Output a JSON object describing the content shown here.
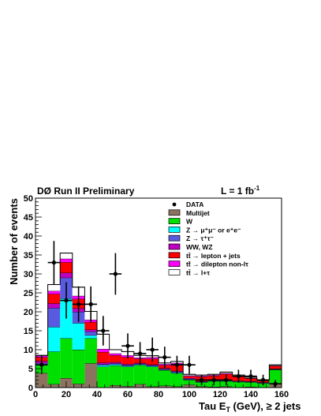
{
  "chart_data": {
    "type": "bar",
    "stacked": true,
    "header_left": "DØ Run II Preliminary",
    "header_right_text": "L = 1 fb",
    "header_right_sup": "-1",
    "xlabel_main": "Tau E",
    "xlabel_sub": "T",
    "xlabel_tail": " (GeV), ≥ 2 jets",
    "ylabel": "Number of events",
    "xlim": [
      0,
      160
    ],
    "ylim": [
      0,
      50
    ],
    "x_ticks": [
      "0",
      "20",
      "40",
      "60",
      "80",
      "100",
      "120",
      "140",
      "160"
    ],
    "y_ticks": [
      "0",
      "5",
      "10",
      "15",
      "20",
      "25",
      "30",
      "35",
      "40",
      "45",
      "50"
    ],
    "bin_edges": [
      0,
      8,
      16,
      24,
      32,
      40,
      48,
      56,
      64,
      72,
      80,
      88,
      96,
      104,
      112,
      120,
      128,
      136,
      144,
      152,
      160
    ],
    "series": [
      {
        "name": "Multijet",
        "color": "#8b7360",
        "values": [
          3.8,
          0.9,
          2.5,
          1.0,
          6.4,
          0,
          0.6,
          0.4,
          0.9,
          0.3,
          0.5,
          0.3,
          0.8,
          0.3,
          0.2,
          0.3,
          0.1,
          0.2,
          0.1,
          1.0
        ]
      },
      {
        "name": "W",
        "color": "#00e000",
        "values": [
          2.2,
          8.6,
          10.5,
          9.0,
          6.6,
          5.5,
          5.2,
          5.1,
          5.0,
          5.2,
          4.1,
          3.5,
          1.2,
          1.1,
          1.5,
          1.4,
          1.4,
          1.2,
          1.0,
          3.7
        ]
      },
      {
        "name": "Z → μ⁺μ⁻ or e⁺e⁻",
        "color": "#00ffff",
        "values": [
          0,
          6.5,
          10.5,
          7.0,
          0.8,
          0.4,
          0.3,
          0.2,
          0.2,
          0.2,
          0.1,
          0.2,
          0.1,
          0.1,
          0.1,
          0.1,
          0.1,
          0.1,
          0.1,
          0.1
        ]
      },
      {
        "name": "Z → τ⁺τ⁻",
        "color": "#5a5ae0",
        "values": [
          0.5,
          5.0,
          5.5,
          3.0,
          1.0,
          0.3,
          0.3,
          0.3,
          0.2,
          0.2,
          0.2,
          0.2,
          0.2,
          0.1,
          0.1,
          0.1,
          0.1,
          0.1,
          0.1,
          0.1
        ]
      },
      {
        "name": "WW, WZ",
        "color": "#c000c0",
        "values": [
          0.5,
          1.2,
          1.3,
          0.9,
          0.5,
          0.4,
          0.3,
          0.2,
          0.2,
          0.2,
          0.2,
          0.2,
          0.2,
          0.1,
          0.1,
          0.1,
          0.1,
          0.1,
          0.1,
          0.1
        ]
      },
      {
        "name": "tt̄ → lepton + jets",
        "color": "#ff0000",
        "values": [
          1.0,
          2.5,
          2.8,
          2.5,
          2.0,
          2.8,
          1.8,
          1.8,
          1.1,
          1.5,
          0.8,
          1.8,
          0.5,
          1.2,
          1.1,
          1.6,
          1.1,
          0.7,
          0.4,
          0.7
        ]
      },
      {
        "name": "tt̄ → dilepton non-lτ",
        "color": "#ff00ff",
        "values": [
          0.4,
          0.8,
          0.9,
          0.8,
          0.6,
          0.8,
          0.5,
          0.5,
          0.3,
          0.4,
          0.3,
          0.3,
          0.2,
          0.2,
          0.2,
          0.2,
          0.2,
          0.1,
          0.1,
          0.1
        ]
      },
      {
        "name": "tt̄ → l+τ",
        "color": "#ffffff",
        "values": [
          0.1,
          1.7,
          1.5,
          2.3,
          2.2,
          3.9,
          1.0,
          1.0,
          0.6,
          0.4,
          0.3,
          0.4,
          0.3,
          0.2,
          0.2,
          0.3,
          0.2,
          0.2,
          0.1,
          0.2
        ]
      }
    ],
    "data": {
      "name": "DATA",
      "x": [
        4,
        12,
        20,
        28,
        36,
        44,
        52,
        60,
        68,
        76,
        84,
        92,
        100,
        108,
        116,
        124,
        132,
        140,
        148,
        156
      ],
      "y": [
        6,
        33,
        23,
        22,
        22,
        15,
        30,
        11,
        9,
        10,
        8,
        6,
        6,
        2,
        2,
        2,
        3,
        3,
        2,
        1
      ],
      "err": [
        2.4,
        5.7,
        4.8,
        4.7,
        4.7,
        3.9,
        5.5,
        3.3,
        3.0,
        3.2,
        2.8,
        2.4,
        2.4,
        1.4,
        1.4,
        1.4,
        1.7,
        1.7,
        1.4,
        1.0
      ]
    }
  }
}
